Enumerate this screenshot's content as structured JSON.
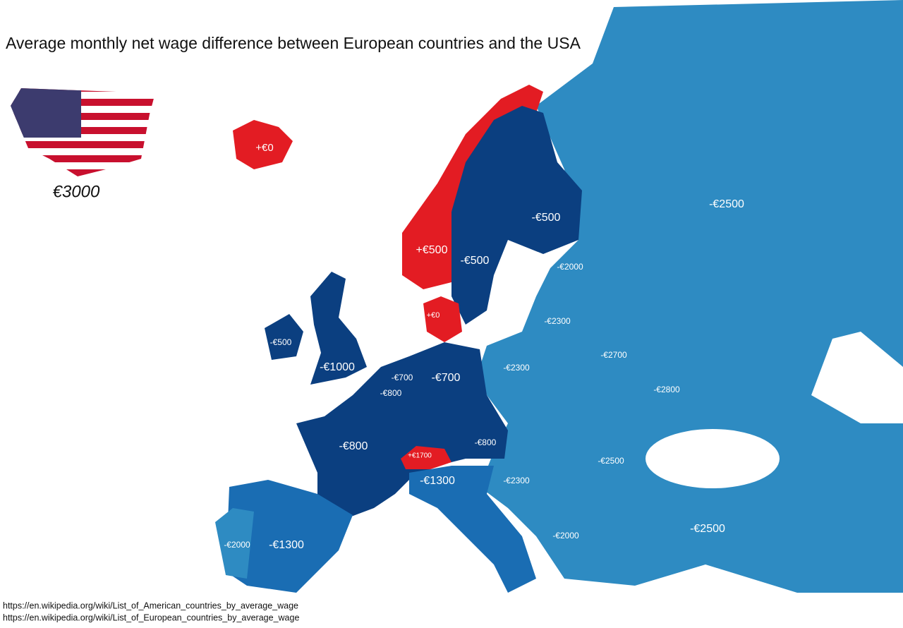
{
  "title": "Average monthly net wage difference between European countries and the USA",
  "usa": {
    "label": "€3000"
  },
  "regions": [
    {
      "label": "+€0"
    },
    {
      "label": "+€500"
    },
    {
      "label": "-€500"
    },
    {
      "label": "-€500"
    },
    {
      "label": "-€2500"
    },
    {
      "label": "-€2000"
    },
    {
      "label": "-€2300"
    },
    {
      "label": "+€0"
    },
    {
      "label": "-€500"
    },
    {
      "label": "-€1000"
    },
    {
      "label": "-€700"
    },
    {
      "label": "-€700"
    },
    {
      "label": "-€800"
    },
    {
      "label": "-€2300"
    },
    {
      "label": "-€2700"
    },
    {
      "label": "-€2800"
    },
    {
      "label": "-€800"
    },
    {
      "label": "+€1700"
    },
    {
      "label": "-€800"
    },
    {
      "label": "-€1300"
    },
    {
      "label": "-€2300"
    },
    {
      "label": "-€2500"
    },
    {
      "label": "-€2000"
    },
    {
      "label": "-€2500"
    },
    {
      "label": "-€2000"
    },
    {
      "label": "-€1300"
    }
  ],
  "sources": [
    "https://en.wikipedia.org/wiki/List_of_American_countries_by_average_wage",
    "https://en.wikipedia.org/wiki/List_of_European_countries_by_average_wage"
  ]
}
